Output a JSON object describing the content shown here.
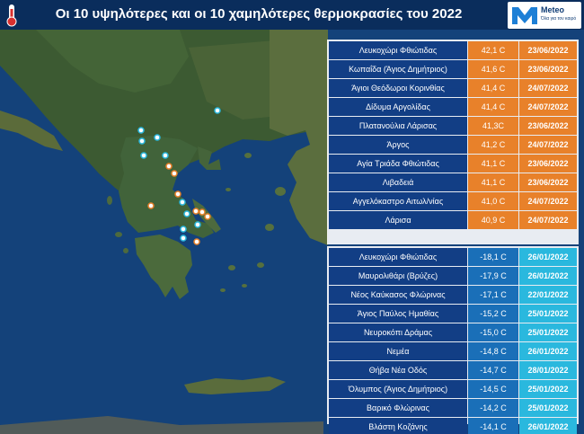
{
  "header": {
    "title": "Οι 10 υψηλότερες και οι 10 χαμηλότερες θερμοκρασίες του 2022",
    "logo_name": "Meteo",
    "logo_tagline": "Όλα για τον καιρό"
  },
  "colors": {
    "header_bg": "#0a2d5c",
    "name_cell": "#123e85",
    "hot_cell": "#e8812a",
    "cold_temp_cell": "#1a6fb8",
    "cold_date_cell": "#2ab8de"
  },
  "icons": {
    "thermometer": "thermometer-icon",
    "logo": "meteo-logo-icon"
  },
  "highest": [
    {
      "station": "Λευκοχώρι Φθιώτιδας",
      "temp": "42,1 C",
      "date": "23/06/2022"
    },
    {
      "station": "Κωπαΐδα (Άγιος Δημήτριος)",
      "temp": "41,6 C",
      "date": "23/06/2022"
    },
    {
      "station": "Άγιοι Θεόδωροι Κορινθίας",
      "temp": "41,4 C",
      "date": "24/07/2022"
    },
    {
      "station": "Δίδυμα Αργολίδας",
      "temp": "41,4 C",
      "date": "24/07/2022"
    },
    {
      "station": "Πλατανούλια Λάρισας",
      "temp": "41,3C",
      "date": "23/06/2022"
    },
    {
      "station": "Άργος",
      "temp": "41,2 C",
      "date": "24/07/2022"
    },
    {
      "station": "Αγία Τριάδα Φθιώτιδας",
      "temp": "41,1 C",
      "date": "23/06/2022"
    },
    {
      "station": "Λιβαδειά",
      "temp": "41,1 C",
      "date": "23/06/2022"
    },
    {
      "station": "Αγγελόκαστρο Αιτωλ/νίας",
      "temp": "41,0 C",
      "date": "24/07/2022"
    },
    {
      "station": "Λάρισα",
      "temp": "40,9 C",
      "date": "24/07/2022"
    }
  ],
  "lowest": [
    {
      "station": "Λευκοχώρι Φθιώτιδας",
      "temp": "-18,1 C",
      "date": "26/01/2022"
    },
    {
      "station": "Μαυρολιθάρι (Βρύζες)",
      "temp": "-17,9 C",
      "date": "26/01/2022"
    },
    {
      "station": "Νέος Καύκασος Φλώρινας",
      "temp": "-17,1 C",
      "date": "22/01/2022"
    },
    {
      "station": "Άγιος Παύλος Ημαθίας",
      "temp": "-15,2 C",
      "date": "25/01/2022"
    },
    {
      "station": "Νευροκόπι Δράμας",
      "temp": "-15,0 C",
      "date": "25/01/2022"
    },
    {
      "station": "Νεμέα",
      "temp": "-14,8 C",
      "date": "26/01/2022"
    },
    {
      "station": "Θήβα Νέα Οδός",
      "temp": "-14,7 C",
      "date": "28/01/2022"
    },
    {
      "station": "Όλυμπος (Άγιος Δημήτριος)",
      "temp": "-14,5 C",
      "date": "25/01/2022"
    },
    {
      "station": "Βαρικό Φλώρινας",
      "temp": "-14,2 C",
      "date": "25/01/2022"
    },
    {
      "station": "Βλάστη Κοζάνης",
      "temp": "-14,1 C",
      "date": "26/01/2022"
    }
  ]
}
